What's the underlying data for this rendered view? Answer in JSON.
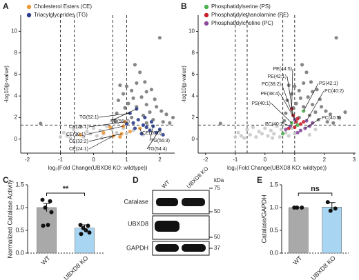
{
  "chart_data": [
    {
      "panel": "A",
      "type": "scatter",
      "xlabel": "log₂(Fold Change(UBXD8 KO: wildtype))",
      "ylabel": "-log10(p-value)",
      "xlim": [
        -2.2,
        2.45
      ],
      "ylim": [
        -1.3,
        11.5
      ],
      "xticks": [
        -2,
        -1,
        0,
        1,
        2
      ],
      "yticks": [
        0,
        2,
        4,
        6,
        8,
        10
      ],
      "thresholds_x": [
        -1,
        -0.58,
        0.58,
        1
      ],
      "threshold_y": 1.3,
      "series": [
        {
          "color": "#c9c9c9",
          "x": [
            -0.9,
            -0.8,
            -0.6,
            -0.5,
            -0.4,
            -0.3,
            -0.2,
            -0.1,
            0,
            0.1,
            0.2,
            0.3,
            0.4,
            0.5,
            0.55,
            0.7,
            0.8,
            0.9,
            1.0,
            1.2,
            1.5,
            1.7,
            -1.0,
            0.25,
            -0.7
          ],
          "y": [
            0.6,
            0.3,
            0.9,
            0.4,
            1.1,
            0.2,
            0.7,
            0.5,
            1.0,
            0.3,
            0.8,
            0.5,
            1.2,
            0.2,
            0.9,
            0.6,
            0.3,
            1.0,
            0.5,
            0.8,
            0.4,
            0.9,
            0.2,
            0.1,
            0.1
          ]
        },
        {
          "color": "#7a7a7a",
          "x": [
            2.0,
            1.25,
            1.4,
            0.8,
            1.0,
            1.3,
            1.55,
            1.15,
            0.9,
            1.6,
            1.75,
            1.2,
            1.45,
            0.75,
            1.85,
            1.05,
            1.6,
            1.3,
            0.95,
            1.9,
            2.05,
            1.7,
            1.5,
            0.7,
            1.15,
            2.2,
            1.8,
            2.4,
            0.65,
            2.3,
            1.6,
            2.1,
            -1.6
          ],
          "y": [
            9.4,
            6.9,
            6.2,
            5.0,
            4.9,
            5.2,
            5.3,
            4.5,
            4.2,
            4.4,
            4.6,
            3.8,
            3.9,
            3.6,
            3.7,
            3.3,
            3.2,
            3.0,
            2.9,
            3.0,
            2.6,
            2.5,
            2.2,
            2.4,
            2.0,
            2.3,
            1.8,
            2.0,
            1.7,
            1.5,
            1.5,
            1.6,
            1.45
          ]
        },
        {
          "name": "Cholesterol Esters (CE)",
          "color": "#f0993a",
          "x": [
            0.85,
            0.9,
            0.95,
            1.4,
            0.6,
            0.8,
            0.3,
            -0.4,
            0.5,
            1.1
          ],
          "y": [
            0.5,
            1.2,
            1.6,
            1.0,
            0.3,
            0.2,
            0.6,
            0.4,
            1.1,
            0.7
          ]
        },
        {
          "name": "Triacylglycerides (TG)",
          "color": "#2c3e8c",
          "x": [
            1.1,
            1.3,
            1.2,
            1.35,
            1.5,
            1.6,
            1.7,
            1.8,
            1.9,
            2.0,
            1.45,
            1.25,
            1.0,
            1.55,
            1.75,
            2.1
          ],
          "y": [
            2.4,
            2.8,
            1.5,
            1.8,
            1.3,
            1.1,
            0.8,
            1.2,
            0.6,
            0.9,
            0.5,
            1.0,
            1.4,
            2.0,
            1.6,
            0.4
          ]
        }
      ],
      "annotations": [
        {
          "text": "TG(52:1)",
          "x": 1.1,
          "y": 2.4
        },
        {
          "text": "TG(56:0)",
          "x": 1.3,
          "y": 2.8
        },
        {
          "text": "CE(28:1)",
          "x": 0.95,
          "y": 1.6
        },
        {
          "text": "CE(30:1)",
          "x": 0.9,
          "y": 1.2
        },
        {
          "text": "CE(26:0)",
          "x": 1.4,
          "y": 1.0
        },
        {
          "text": "CE(32:2)",
          "x": 0.85,
          "y": 0.5
        },
        {
          "text": "TG(56:3)",
          "x": 1.8,
          "y": 1.2
        },
        {
          "text": "CE(24:1)",
          "x": 0.6,
          "y": 0.3
        },
        {
          "text": "TG(54:4)",
          "x": 2.0,
          "y": 0.9
        }
      ]
    },
    {
      "panel": "B",
      "type": "scatter",
      "xlabel": "log₂(Fold Change(UBXD8 KO: wildtype))",
      "ylabel": "-log10(p-value)",
      "xlim": [
        -2.25,
        3.05
      ],
      "ylim": [
        -1.3,
        11.5
      ],
      "xticks": [
        -2,
        -1,
        0,
        1,
        2,
        3
      ],
      "yticks": [
        0,
        2,
        4,
        6,
        8,
        10
      ],
      "thresholds_x": [
        -1,
        -0.6,
        0.6,
        1
      ],
      "threshold_y": 1.3,
      "series": [
        {
          "color": "#c9c9c9",
          "x": [
            -0.9,
            -0.8,
            -0.6,
            -0.5,
            -0.4,
            -0.3,
            -0.2,
            -0.1,
            0,
            0.1,
            0.2,
            0.3,
            0.4,
            0.5,
            0.55,
            0.7,
            0.8,
            0.9,
            1.0,
            1.2,
            1.5,
            1.7,
            -1.0,
            0.25,
            -0.7
          ],
          "y": [
            0.6,
            0.3,
            0.9,
            0.4,
            1.1,
            0.2,
            0.7,
            0.5,
            1.0,
            0.3,
            0.8,
            0.5,
            1.2,
            0.2,
            0.9,
            0.6,
            0.3,
            1.0,
            0.5,
            0.8,
            0.4,
            0.9,
            0.2,
            0.1,
            0.1
          ]
        },
        {
          "color": "#7a7a7a",
          "x": [
            2.4,
            1.25,
            1.4,
            0.8,
            1.0,
            1.3,
            1.55,
            1.15,
            0.9,
            1.6,
            1.75,
            1.2,
            1.45,
            0.75,
            1.85,
            1.05,
            1.6,
            1.3,
            0.95,
            1.9,
            2.05,
            1.7,
            1.5,
            0.7,
            1.15,
            2.2,
            1.8,
            2.5,
            0.65,
            2.3,
            2.7,
            2.1,
            -1.5
          ],
          "y": [
            9.4,
            6.9,
            6.2,
            5.0,
            4.9,
            5.2,
            5.3,
            4.5,
            4.2,
            4.4,
            4.6,
            3.8,
            3.9,
            3.6,
            3.7,
            3.3,
            3.2,
            3.0,
            2.9,
            3.0,
            2.6,
            2.5,
            2.2,
            2.4,
            2.0,
            2.3,
            1.8,
            2.0,
            1.7,
            1.5,
            2.5,
            1.6,
            1.45
          ]
        },
        {
          "name": "Phosphatidylserine (PS)",
          "color": "#4fb04f",
          "x": [
            0.9,
            1.3,
            1.1,
            0.6
          ],
          "y": [
            1.5,
            2.6,
            1.3,
            0.5
          ]
        },
        {
          "name": "Phosphatidylethanolamine (PE)",
          "color": "#c8202a",
          "x": [
            0.9,
            0.95,
            1.05,
            1.1,
            1.2,
            0.8,
            1.0,
            1.3
          ],
          "y": [
            2.8,
            2.2,
            1.6,
            1.9,
            1.4,
            1.0,
            1.1,
            1.6
          ]
        },
        {
          "name": "Phosphatidylcholine (PC)",
          "color": "#8a4a9c",
          "x": [
            1.0,
            0.85,
            1.4,
            1.35,
            1.5,
            1.2,
            0.7,
            1.6,
            1.1
          ],
          "y": [
            1.8,
            1.2,
            1.7,
            1.0,
            1.2,
            0.8,
            0.9,
            1.5,
            0.6
          ]
        }
      ],
      "annotations": [
        {
          "text": "PE(44:5)",
          "x": 0.9,
          "y": 2.8
        },
        {
          "text": "PE(42:1)",
          "x": 0.95,
          "y": 2.2
        },
        {
          "text": "PC(38:2)",
          "x": 1.0,
          "y": 1.8
        },
        {
          "text": "PE(38:4)",
          "x": 1.05,
          "y": 1.6
        },
        {
          "text": "PS(40:1)",
          "x": 0.9,
          "y": 1.5
        },
        {
          "text": "PC(40:7)",
          "x": 0.85,
          "y": 1.2
        },
        {
          "text": "PS(42:1)",
          "x": 1.3,
          "y": 2.6
        },
        {
          "text": "PC(40:2)",
          "x": 1.4,
          "y": 1.7
        },
        {
          "text": "PC(40:5)",
          "x": 1.35,
          "y": 1.0
        }
      ]
    },
    {
      "panel": "C",
      "type": "bar",
      "ylabel": "Normalized Catalase Activity",
      "categories": [
        "WT",
        "UBXD8 KO"
      ],
      "values": [
        1.0,
        0.55
      ],
      "errors": [
        0.09,
        0.07
      ],
      "colors": [
        "#a9a9a9",
        "#a8d5f2"
      ],
      "points": [
        [
          1.17,
          1.14,
          1.0,
          0.9,
          0.6,
          0.62
        ],
        [
          0.62,
          0.6,
          0.55,
          0.45,
          0.42,
          0.5
        ]
      ],
      "ylim": [
        0,
        1.5
      ],
      "yticks": [
        {
          "value": 0,
          "label": "0.0"
        },
        {
          "value": 0.5,
          "label": "0.5"
        },
        {
          "value": 1,
          "label": "1.0"
        },
        {
          "value": 1.5,
          "label": "1.5"
        }
      ],
      "significance": "**"
    },
    {
      "panel": "E",
      "type": "bar",
      "ylabel": "Catalase/GAPDH",
      "categories": [
        "WT",
        "UBXD8 KO"
      ],
      "values": [
        1.0,
        1.01
      ],
      "errors": [
        0,
        0.1
      ],
      "colors": [
        "#a9a9a9",
        "#a8d5f2"
      ],
      "points": [
        [
          1.0,
          1.0,
          1.0
        ],
        [
          1.12,
          0.98,
          0.93
        ]
      ],
      "ylim": [
        0,
        1.5
      ],
      "yticks": [
        {
          "value": 0,
          "label": "0.0"
        },
        {
          "value": 0.5,
          "label": "0.5"
        },
        {
          "value": 1,
          "label": "1.0"
        },
        {
          "value": 1.5,
          "label": "1.5"
        }
      ],
      "significance": "ns"
    }
  ],
  "blot": {
    "panel": "D",
    "columns": [
      "WT",
      "UBXD8 KO"
    ],
    "unit": "kDa",
    "rows": [
      {
        "label": "Catalase",
        "markers": [
          75,
          50
        ]
      },
      {
        "label": "UBXD8",
        "markers": [
          50
        ]
      },
      {
        "label": "GAPDH",
        "markers": [
          37
        ]
      }
    ]
  }
}
